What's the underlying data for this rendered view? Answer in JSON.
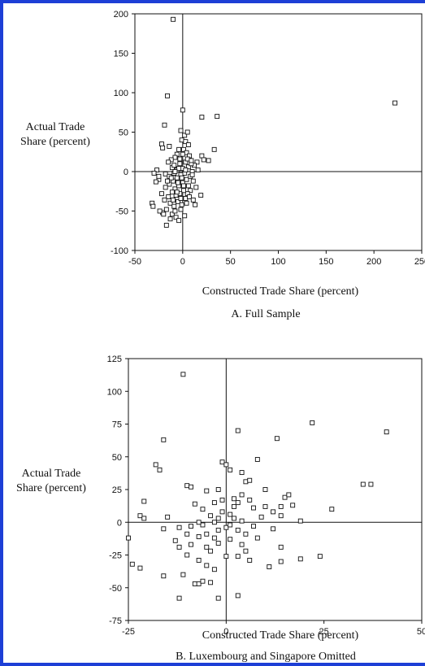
{
  "chart_data": [
    {
      "type": "scatter",
      "title": "A. Full Sample",
      "xlabel": "Constructed Trade Share (percent)",
      "ylabel_lines": [
        "Actual Trade",
        "Share (percent)"
      ],
      "xlim": [
        -50,
        250
      ],
      "ylim": [
        -100,
        200
      ],
      "x_ticks": [
        -50,
        0,
        50,
        100,
        150,
        200,
        250
      ],
      "y_ticks": [
        -100,
        -50,
        0,
        50,
        100,
        150,
        200
      ],
      "grid": false,
      "reference_lines": {
        "x": 0,
        "y": 0
      },
      "marker": "hollow-square",
      "points": [
        [
          -10,
          193
        ],
        [
          -16,
          96
        ],
        [
          222,
          87
        ],
        [
          36,
          70
        ],
        [
          20,
          69
        ],
        [
          0,
          78
        ],
        [
          -19,
          59
        ],
        [
          -22,
          35
        ],
        [
          -21,
          30
        ],
        [
          -14,
          32
        ],
        [
          -6,
          22
        ],
        [
          -4,
          28
        ],
        [
          -8,
          18
        ],
        [
          -12,
          15
        ],
        [
          -2,
          52
        ],
        [
          2,
          46
        ],
        [
          5,
          50
        ],
        [
          -1,
          40
        ],
        [
          3,
          38
        ],
        [
          6,
          34
        ],
        [
          1,
          28
        ],
        [
          4,
          24
        ],
        [
          7,
          20
        ],
        [
          33,
          28
        ],
        [
          20,
          20
        ],
        [
          22,
          15
        ],
        [
          27,
          14
        ],
        [
          15,
          12
        ],
        [
          12,
          8
        ],
        [
          16,
          2
        ],
        [
          -15,
          12
        ],
        [
          -27,
          2
        ],
        [
          -30,
          -2
        ],
        [
          -25,
          -10
        ],
        [
          -28,
          -13
        ],
        [
          -18,
          -3
        ],
        [
          -14,
          -6
        ],
        [
          -11,
          5
        ],
        [
          -9,
          8
        ],
        [
          -6,
          2
        ],
        [
          -3,
          10
        ],
        [
          0,
          4
        ],
        [
          3,
          12
        ],
        [
          6,
          6
        ],
        [
          9,
          10
        ],
        [
          10,
          0
        ],
        [
          2,
          -2
        ],
        [
          -2,
          -4
        ],
        [
          -6,
          -8
        ],
        [
          -10,
          -12
        ],
        [
          -14,
          -16
        ],
        [
          -18,
          -20
        ],
        [
          -8,
          -22
        ],
        [
          -4,
          -18
        ],
        [
          0,
          -14
        ],
        [
          4,
          -10
        ],
        [
          8,
          -6
        ],
        [
          11,
          -12
        ],
        [
          14,
          -20
        ],
        [
          8,
          -24
        ],
        [
          5,
          -28
        ],
        [
          1,
          -24
        ],
        [
          -3,
          -28
        ],
        [
          -7,
          -30
        ],
        [
          -11,
          -26
        ],
        [
          -15,
          -32
        ],
        [
          -19,
          -36
        ],
        [
          -22,
          -28
        ],
        [
          -13,
          -40
        ],
        [
          -9,
          -44
        ],
        [
          -5,
          -38
        ],
        [
          -1,
          -42
        ],
        [
          3,
          -34
        ],
        [
          7,
          -32
        ],
        [
          11,
          -36
        ],
        [
          19,
          -30
        ],
        [
          13,
          -42
        ],
        [
          -17,
          -48
        ],
        [
          -21,
          -52
        ],
        [
          -11,
          -54
        ],
        [
          -7,
          -58
        ],
        [
          -13,
          -60
        ],
        [
          -4,
          -62
        ],
        [
          2,
          -56
        ],
        [
          -17,
          -68
        ],
        [
          -2,
          -48
        ],
        [
          -8,
          -50
        ],
        [
          -32,
          -40
        ],
        [
          -31,
          -44
        ],
        [
          -24,
          -50
        ],
        [
          -20,
          -54
        ],
        [
          -25,
          -6
        ],
        [
          -5,
          -14
        ],
        [
          -1,
          -8
        ],
        [
          1,
          -18
        ],
        [
          -9,
          -2
        ],
        [
          -12,
          -8
        ],
        [
          -16,
          -12
        ],
        [
          -4,
          4
        ],
        [
          -8,
          0
        ],
        [
          5,
          16
        ],
        [
          9,
          14
        ],
        [
          -3,
          16
        ],
        [
          0,
          22
        ],
        [
          3,
          2
        ],
        [
          6,
          -18
        ],
        [
          10,
          -4
        ],
        [
          -6,
          -26
        ],
        [
          -10,
          -36
        ],
        [
          -2,
          -34
        ],
        [
          4,
          -40
        ]
      ]
    },
    {
      "type": "scatter",
      "title": "B. Luxembourg and Singapore Omitted",
      "xlabel": "Constructed Trade Share (percent)",
      "ylabel_lines": [
        "Actual Trade",
        "Share (percent)"
      ],
      "xlim": [
        -25,
        50
      ],
      "ylim": [
        -75,
        125
      ],
      "x_ticks": [
        -25,
        0,
        25,
        50
      ],
      "y_ticks": [
        -75,
        -50,
        -25,
        0,
        25,
        50,
        75,
        100,
        125
      ],
      "grid": false,
      "reference_lines": {
        "x": 0,
        "y": 0
      },
      "marker": "hollow-square",
      "points": [
        [
          -11,
          113
        ],
        [
          -16,
          63
        ],
        [
          22,
          76
        ],
        [
          41,
          69
        ],
        [
          13,
          64
        ],
        [
          3,
          70
        ],
        [
          -18,
          44
        ],
        [
          -17,
          40
        ],
        [
          -10,
          28
        ],
        [
          -9,
          27
        ],
        [
          -21,
          16
        ],
        [
          -22,
          5
        ],
        [
          -21,
          3
        ],
        [
          -15,
          4
        ],
        [
          -16,
          -5
        ],
        [
          -12,
          -4
        ],
        [
          -25,
          -12
        ],
        [
          -24,
          -32
        ],
        [
          -22,
          -35
        ],
        [
          -16,
          -41
        ],
        [
          -12,
          -58
        ],
        [
          -11,
          -40
        ],
        [
          -8,
          -47
        ],
        [
          -7,
          -47
        ],
        [
          -6,
          -45
        ],
        [
          -4,
          -46
        ],
        [
          -2,
          -58
        ],
        [
          3,
          -56
        ],
        [
          -1,
          46
        ],
        [
          0,
          44
        ],
        [
          1,
          40
        ],
        [
          4,
          38
        ],
        [
          8,
          48
        ],
        [
          5,
          31
        ],
        [
          6,
          32
        ],
        [
          10,
          25
        ],
        [
          4,
          21
        ],
        [
          2,
          18
        ],
        [
          3,
          15
        ],
        [
          6,
          17
        ],
        [
          -1,
          17
        ],
        [
          -3,
          15
        ],
        [
          -5,
          24
        ],
        [
          -8,
          14
        ],
        [
          -6,
          10
        ],
        [
          -1,
          8
        ],
        [
          1,
          6
        ],
        [
          2,
          3
        ],
        [
          4,
          1
        ],
        [
          -2,
          3
        ],
        [
          -4,
          5
        ],
        [
          -9,
          -3
        ],
        [
          -7,
          -11
        ],
        [
          -5,
          -9
        ],
        [
          -2,
          -6
        ],
        [
          0,
          -4
        ],
        [
          3,
          -6
        ],
        [
          5,
          -9
        ],
        [
          1,
          -13
        ],
        [
          -2,
          -16
        ],
        [
          -5,
          -19
        ],
        [
          -9,
          -17
        ],
        [
          -12,
          -19
        ],
        [
          -10,
          -25
        ],
        [
          -7,
          -29
        ],
        [
          -5,
          -33
        ],
        [
          -3,
          -36
        ],
        [
          0,
          -26
        ],
        [
          3,
          -26
        ],
        [
          5,
          -22
        ],
        [
          6,
          -29
        ],
        [
          8,
          -12
        ],
        [
          9,
          4
        ],
        [
          12,
          8
        ],
        [
          14,
          12
        ],
        [
          15,
          19
        ],
        [
          16,
          21
        ],
        [
          17,
          13
        ],
        [
          14,
          5
        ],
        [
          19,
          1
        ],
        [
          27,
          10
        ],
        [
          35,
          29
        ],
        [
          37,
          29
        ],
        [
          11,
          -34
        ],
        [
          14,
          -30
        ],
        [
          14,
          -19
        ],
        [
          19,
          -28
        ],
        [
          24,
          -26
        ],
        [
          -13,
          -14
        ],
        [
          -10,
          -9
        ],
        [
          -3,
          0
        ],
        [
          1,
          -2
        ],
        [
          -6,
          -2
        ],
        [
          -4,
          -22
        ],
        [
          2,
          12
        ],
        [
          7,
          11
        ],
        [
          10,
          12
        ],
        [
          -2,
          25
        ],
        [
          -3,
          -12
        ],
        [
          4,
          -17
        ],
        [
          7,
          -3
        ],
        [
          -7,
          0
        ],
        [
          12,
          -5
        ]
      ]
    }
  ]
}
